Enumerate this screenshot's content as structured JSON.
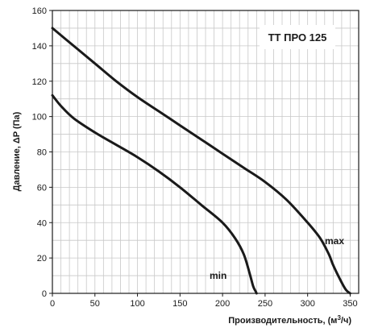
{
  "chart_data": {
    "type": "line",
    "title": "ТТ ПРО 125",
    "xlabel": "Производительность, (м",
    "xlabel_sup": "3",
    "xlabel_tail": "/ч)",
    "ylabel": "Давление, ΔP (Па)",
    "xlim": [
      0,
      360
    ],
    "ylim": [
      0,
      160
    ],
    "xticks": [
      0,
      50,
      100,
      150,
      200,
      250,
      300,
      350
    ],
    "yticks": [
      0,
      20,
      40,
      60,
      80,
      100,
      120,
      140,
      160
    ],
    "grid": true,
    "grid_step_x": 10,
    "grid_step_y": 10,
    "series": [
      {
        "name": "max",
        "x": [
          0,
          25,
          50,
          75,
          100,
          125,
          150,
          175,
          200,
          225,
          250,
          275,
          300,
          315,
          325,
          330,
          338,
          345,
          350
        ],
        "y": [
          150,
          140,
          130,
          120,
          111,
          103,
          95,
          87,
          79,
          71,
          63,
          53,
          40,
          31,
          22,
          16,
          8,
          2,
          0
        ]
      },
      {
        "name": "min",
        "x": [
          0,
          10,
          25,
          50,
          75,
          100,
          125,
          150,
          175,
          200,
          215,
          225,
          232,
          236,
          239,
          240
        ],
        "y": [
          112,
          106,
          99,
          91,
          84,
          77,
          69,
          60,
          50,
          40,
          31,
          22,
          11,
          4,
          1,
          0
        ]
      }
    ],
    "colors": {
      "line": "#1a1a1a",
      "grid": "#c8c8c8",
      "axis": "#1a1a1a"
    }
  }
}
